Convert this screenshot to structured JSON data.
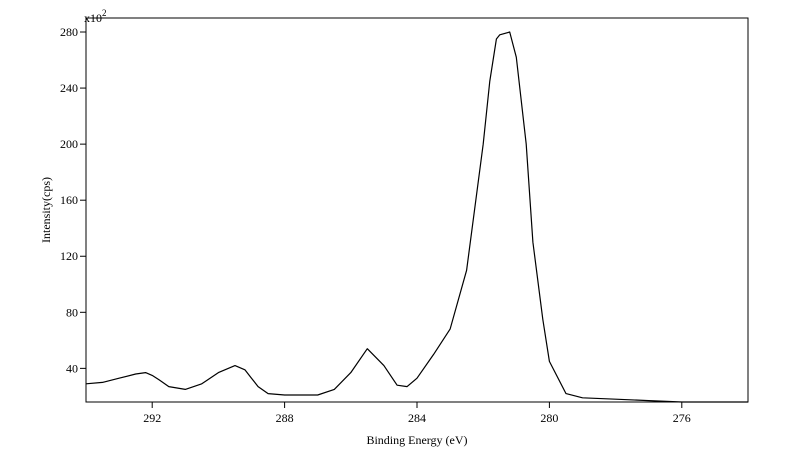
{
  "chart_data": {
    "type": "line",
    "xlabel": "Binding Energy (eV)",
    "ylabel": "Intensity(cps)",
    "y_multiplier": {
      "base": "x10",
      "exponent": "2"
    },
    "x_reversed": true,
    "xlim": [
      294,
      274
    ],
    "ylim": [
      16,
      290
    ],
    "x_ticks": [
      "292",
      "288",
      "284",
      "280",
      "276"
    ],
    "y_ticks": [
      "40",
      "80",
      "120",
      "160",
      "200",
      "240",
      "280"
    ],
    "series": [
      {
        "x": [
          294.0,
          293.5,
          293.0,
          292.5,
          292.2,
          292.0,
          291.8,
          291.5,
          291.0,
          290.5,
          290.0,
          289.5,
          289.2,
          289.0,
          288.8,
          288.5,
          288.0,
          287.5,
          287.0,
          286.5,
          286.0,
          285.5,
          285.0,
          284.6,
          284.3,
          284.0,
          283.5,
          283.0,
          282.5,
          282.0,
          281.8,
          281.6,
          281.5,
          281.2,
          281.0,
          280.7,
          280.5,
          280.2,
          280.0,
          279.5,
          279.0,
          278.0,
          277.0,
          276.0,
          275.0,
          274.0
        ],
        "y": [
          29,
          30,
          33,
          36,
          37,
          35,
          32,
          27,
          25,
          29,
          37,
          42,
          39,
          33,
          27,
          22,
          21,
          21,
          21,
          25,
          37,
          54,
          42,
          28,
          27,
          33,
          50,
          68,
          110,
          200,
          245,
          275,
          278,
          280,
          262,
          200,
          130,
          75,
          45,
          22,
          19,
          18,
          17,
          16,
          16,
          16
        ]
      }
    ]
  }
}
